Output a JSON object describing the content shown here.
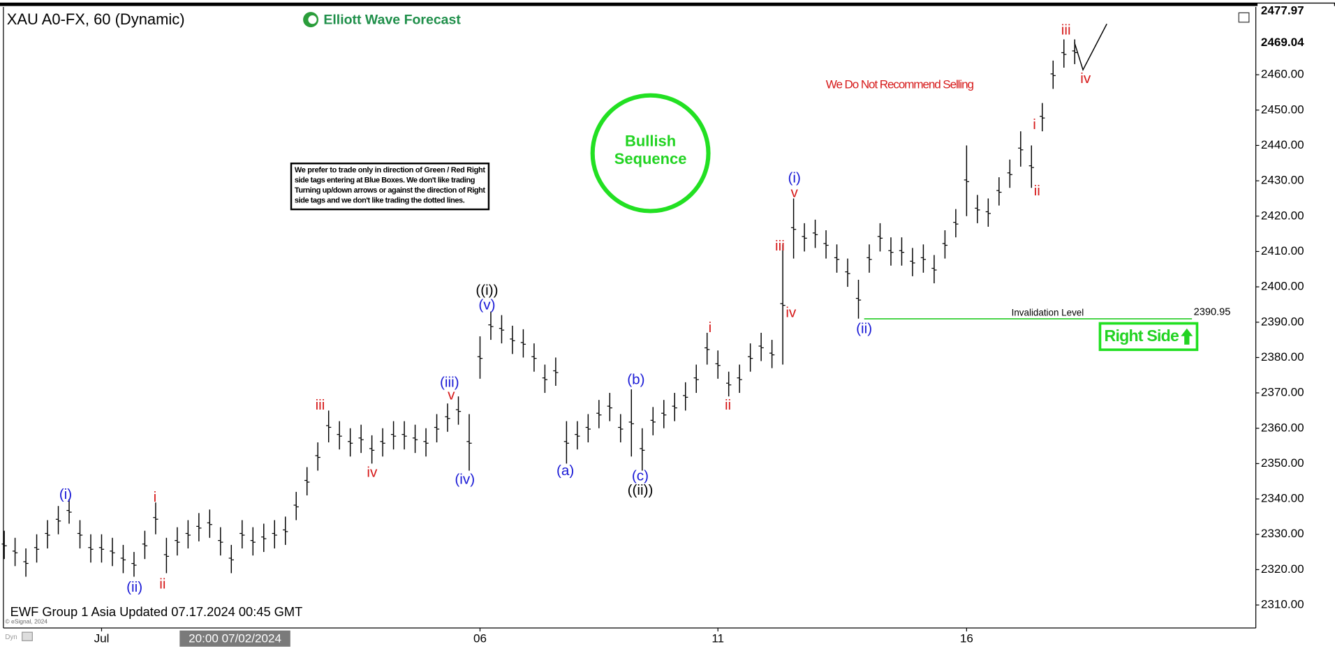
{
  "chart_data": {
    "type": "ohlc",
    "title": "XAU A0-FX, 60 (Dynamic)",
    "brand": "Elliott Wave Forecast",
    "footer": "EWF Group 1 Asia Updated 07.17.2024 00:45 GMT",
    "copyright": "© eSignal, 2024",
    "mode": "Dyn",
    "crosshair_label": "20:00 07/02/2024",
    "warning": "We Do Not Recommend Selling",
    "badge": [
      "Bullish",
      "Sequence"
    ],
    "disclaimer": [
      "We prefer to trade only in direction of Green / Red Right",
      "side tags entering at Blue Boxes. We don't like trading",
      "Turning up/down arrows or against the direction of Right",
      "side tags and we don't like trading the dotted lines."
    ],
    "invalidation": {
      "label": "Invalidation Level",
      "value": 2390.95,
      "value_label": "2390.95"
    },
    "tag": "Right Side",
    "price_labels": [
      {
        "value": 2477.97,
        "label": "2477.97"
      },
      {
        "value": 2469.04,
        "label": "2469.04"
      }
    ],
    "color": "#000000",
    "categories": [
      null,
      null,
      null,
      null,
      null,
      null,
      null,
      null,
      null,
      "Jul",
      null,
      null,
      null,
      null,
      null,
      null,
      null,
      null,
      null,
      null,
      null,
      null,
      null,
      null,
      null,
      null,
      null,
      null,
      null,
      null,
      null,
      null,
      null,
      null,
      null,
      null,
      null,
      null,
      null,
      null,
      null,
      null,
      null,
      null,
      "06",
      null,
      null,
      null,
      null,
      null,
      null,
      null,
      null,
      null,
      null,
      null,
      null,
      null,
      null,
      null,
      null,
      null,
      null,
      null,
      null,
      null,
      "11",
      null,
      null,
      null,
      null,
      null,
      null,
      null,
      null,
      null,
      null,
      null,
      null,
      null,
      null,
      null,
      null,
      null,
      null,
      null,
      null,
      null,
      null,
      "16",
      null,
      null,
      null,
      null,
      null,
      null,
      null,
      null,
      null,
      null
    ],
    "high": [
      2331,
      2329,
      2326,
      2330,
      2334,
      2338,
      2340,
      2334,
      2330,
      2330,
      2329,
      2327,
      2325,
      2331,
      2339,
      2329,
      2332,
      2334,
      2336,
      2337,
      2332,
      2327,
      2334,
      2332,
      2333,
      2334,
      2335,
      2342,
      2349,
      2356,
      2365,
      2362,
      2360,
      2361,
      2358,
      2360,
      2362,
      2362,
      2361,
      2360,
      2364,
      2367,
      2369,
      2364,
      2386,
      2393,
      2392,
      2389,
      2388,
      2384,
      2378,
      2380,
      2362,
      2362,
      2364,
      2368,
      2370,
      2364,
      2371,
      2360,
      2366,
      2368,
      2370,
      2373,
      2378,
      2387,
      2382,
      2376,
      2378,
      2384,
      2387,
      2385,
      2412,
      2425,
      2418,
      2419,
      2416,
      2412,
      2408,
      2402,
      2412,
      2418,
      2414,
      2414,
      2411,
      2412,
      2409,
      2416,
      2422,
      2440,
      2426,
      2425,
      2431,
      2436,
      2444,
      2440,
      2452,
      2464,
      2470,
      2470
    ],
    "low": [
      2323,
      2321,
      2318,
      2322,
      2326,
      2330,
      2333,
      2326,
      2322,
      2322,
      2321,
      2319,
      2318,
      2323,
      2330,
      2319,
      2324,
      2326,
      2328,
      2329,
      2324,
      2319,
      2326,
      2324,
      2325,
      2326,
      2327,
      2334,
      2341,
      2348,
      2356,
      2354,
      2352,
      2353,
      2350,
      2352,
      2354,
      2354,
      2353,
      2352,
      2356,
      2359,
      2361,
      2348,
      2374,
      2385,
      2384,
      2381,
      2380,
      2376,
      2370,
      2372,
      2350,
      2354,
      2356,
      2360,
      2362,
      2356,
      2352,
      2348,
      2358,
      2360,
      2362,
      2365,
      2370,
      2378,
      2374,
      2369,
      2370,
      2376,
      2379,
      2377,
      2378,
      2408,
      2410,
      2411,
      2408,
      2404,
      2400,
      2391,
      2404,
      2410,
      2406,
      2406,
      2403,
      2404,
      2401,
      2408,
      2414,
      2420,
      2418,
      2417,
      2423,
      2428,
      2434,
      2428,
      2444,
      2456,
      2462,
      2463
    ],
    "ylim": [
      2303.5,
      2479.2
    ],
    "yticks": [
      {
        "value": 2310,
        "label": "2310.00"
      },
      {
        "value": 2320,
        "label": "2320.00"
      },
      {
        "value": 2330,
        "label": "2330.00"
      },
      {
        "value": 2340,
        "label": "2340.00"
      },
      {
        "value": 2350,
        "label": "2350.00"
      },
      {
        "value": 2360,
        "label": "2360.00"
      },
      {
        "value": 2370,
        "label": "2370.00"
      },
      {
        "value": 2380,
        "label": "2380.00"
      },
      {
        "value": 2390,
        "label": "2390.00"
      },
      {
        "value": 2400,
        "label": "2400.00"
      },
      {
        "value": 2410,
        "label": "2410.00"
      },
      {
        "value": 2420,
        "label": "2420.00"
      },
      {
        "value": 2430,
        "label": "2430.00"
      },
      {
        "value": 2440,
        "label": "2440.00"
      },
      {
        "value": 2450,
        "label": "2450.00"
      },
      {
        "value": 2460,
        "label": "2460.00"
      }
    ],
    "annotations": [
      {
        "text": "(i)",
        "color": "#1a1ad6"
      },
      {
        "text": "(ii)",
        "color": "#1a1ad6"
      },
      {
        "text": "i",
        "color": "#d61a1a"
      },
      {
        "text": "ii",
        "color": "#d61a1a"
      },
      {
        "text": "iii",
        "color": "#d61a1a"
      },
      {
        "text": "iv",
        "color": "#d61a1a"
      },
      {
        "text": "(iii)",
        "color": "#1a1ad6"
      },
      {
        "text": "v",
        "color": "#d61a1a"
      },
      {
        "text": "(iv)",
        "color": "#1a1ad6"
      },
      {
        "text": "((i))",
        "color": "#000000"
      },
      {
        "text": "(v)",
        "color": "#1a1ad6"
      },
      {
        "text": "(a)",
        "color": "#1a1ad6"
      },
      {
        "text": "(b)",
        "color": "#1a1ad6"
      },
      {
        "text": "(c)",
        "color": "#1a1ad6"
      },
      {
        "text": "((ii))",
        "color": "#000000"
      },
      {
        "text": "i",
        "color": "#d61a1a"
      },
      {
        "text": "ii",
        "color": "#d61a1a"
      },
      {
        "text": "(i)",
        "color": "#1a1ad6"
      },
      {
        "text": "v",
        "color": "#d61a1a"
      },
      {
        "text": "iii",
        "color": "#d61a1a"
      },
      {
        "text": "iv",
        "color": "#d61a1a"
      },
      {
        "text": "(ii)",
        "color": "#1a1ad6"
      },
      {
        "text": "i",
        "color": "#d61a1a"
      },
      {
        "text": "ii",
        "color": "#d61a1a"
      },
      {
        "text": "iii",
        "color": "#d61a1a"
      },
      {
        "text": "iv",
        "color": "#d61a1a"
      }
    ]
  }
}
